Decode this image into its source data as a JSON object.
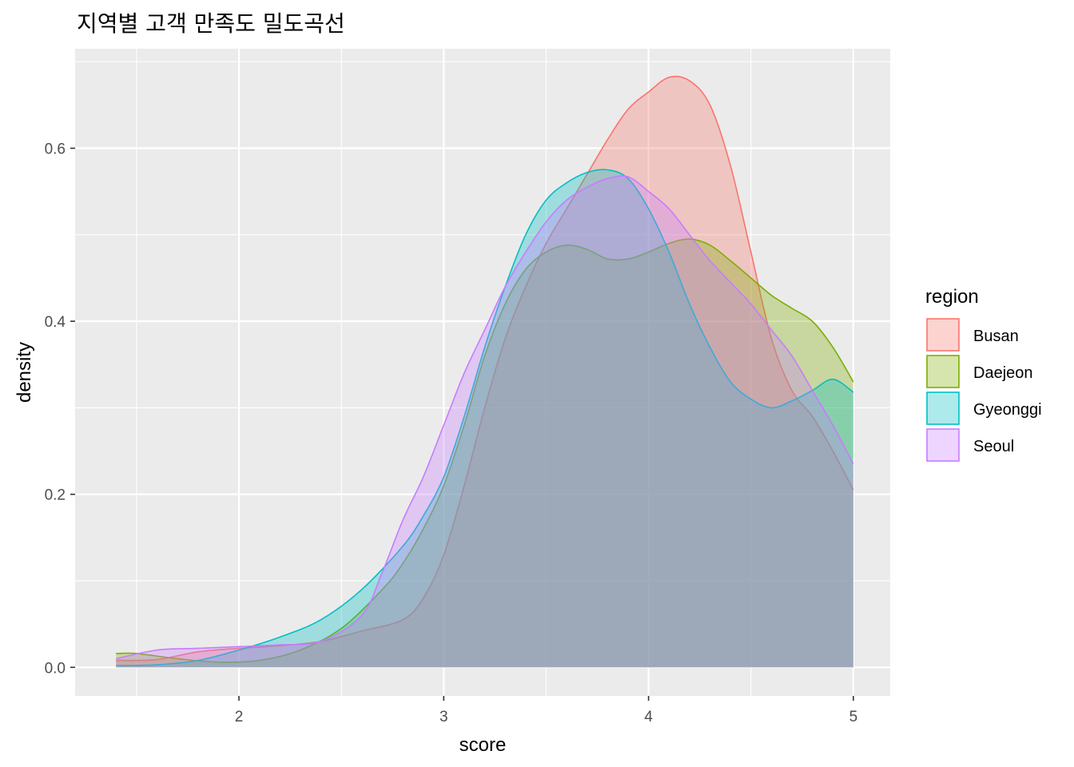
{
  "chart_data": {
    "type": "area",
    "title": "지역별 고객 만족도 밀도곡선",
    "xlabel": "score",
    "ylabel": "density",
    "xlim": [
      1.2,
      5.18
    ],
    "ylim": [
      -0.033,
      0.715
    ],
    "x_ticks": [
      2,
      3,
      4,
      5
    ],
    "x_tick_labels": [
      "2",
      "3",
      "4",
      "5"
    ],
    "y_ticks": [
      0.0,
      0.2,
      0.4,
      0.6
    ],
    "y_tick_labels": [
      "0.0",
      "0.2",
      "0.4",
      "0.6"
    ],
    "grid": true,
    "legend": {
      "title": "region",
      "position": "right"
    },
    "series": [
      {
        "name": "Busan",
        "color": "#F8766D",
        "points": [
          [
            1.4,
            0.008
          ],
          [
            1.6,
            0.009
          ],
          [
            1.8,
            0.018
          ],
          [
            2.0,
            0.022
          ],
          [
            2.2,
            0.025
          ],
          [
            2.4,
            0.03
          ],
          [
            2.6,
            0.042
          ],
          [
            2.8,
            0.055
          ],
          [
            2.9,
            0.08
          ],
          [
            3.0,
            0.13
          ],
          [
            3.1,
            0.21
          ],
          [
            3.2,
            0.3
          ],
          [
            3.3,
            0.38
          ],
          [
            3.4,
            0.44
          ],
          [
            3.5,
            0.49
          ],
          [
            3.6,
            0.53
          ],
          [
            3.7,
            0.57
          ],
          [
            3.8,
            0.61
          ],
          [
            3.9,
            0.645
          ],
          [
            4.0,
            0.665
          ],
          [
            4.1,
            0.682
          ],
          [
            4.2,
            0.678
          ],
          [
            4.3,
            0.65
          ],
          [
            4.4,
            0.58
          ],
          [
            4.5,
            0.48
          ],
          [
            4.6,
            0.38
          ],
          [
            4.7,
            0.32
          ],
          [
            4.8,
            0.29
          ],
          [
            4.9,
            0.25
          ],
          [
            5.0,
            0.205
          ]
        ]
      },
      {
        "name": "Daejeon",
        "color": "#7CAE00",
        "points": [
          [
            1.4,
            0.016
          ],
          [
            1.5,
            0.016
          ],
          [
            1.7,
            0.01
          ],
          [
            1.9,
            0.006
          ],
          [
            2.1,
            0.008
          ],
          [
            2.3,
            0.02
          ],
          [
            2.5,
            0.045
          ],
          [
            2.7,
            0.09
          ],
          [
            2.8,
            0.12
          ],
          [
            2.9,
            0.16
          ],
          [
            3.0,
            0.21
          ],
          [
            3.1,
            0.28
          ],
          [
            3.2,
            0.36
          ],
          [
            3.3,
            0.42
          ],
          [
            3.4,
            0.46
          ],
          [
            3.5,
            0.48
          ],
          [
            3.6,
            0.488
          ],
          [
            3.7,
            0.483
          ],
          [
            3.8,
            0.472
          ],
          [
            3.9,
            0.472
          ],
          [
            4.0,
            0.48
          ],
          [
            4.1,
            0.49
          ],
          [
            4.2,
            0.495
          ],
          [
            4.3,
            0.488
          ],
          [
            4.4,
            0.47
          ],
          [
            4.5,
            0.45
          ],
          [
            4.6,
            0.43
          ],
          [
            4.7,
            0.415
          ],
          [
            4.8,
            0.4
          ],
          [
            4.9,
            0.37
          ],
          [
            5.0,
            0.33
          ]
        ]
      },
      {
        "name": "Gyeonggi",
        "color": "#00BFC4",
        "points": [
          [
            1.4,
            0.002
          ],
          [
            1.6,
            0.003
          ],
          [
            1.8,
            0.008
          ],
          [
            2.0,
            0.02
          ],
          [
            2.2,
            0.035
          ],
          [
            2.4,
            0.055
          ],
          [
            2.6,
            0.09
          ],
          [
            2.8,
            0.14
          ],
          [
            2.9,
            0.175
          ],
          [
            3.0,
            0.22
          ],
          [
            3.1,
            0.29
          ],
          [
            3.2,
            0.37
          ],
          [
            3.3,
            0.44
          ],
          [
            3.4,
            0.5
          ],
          [
            3.5,
            0.54
          ],
          [
            3.6,
            0.56
          ],
          [
            3.7,
            0.572
          ],
          [
            3.8,
            0.575
          ],
          [
            3.9,
            0.565
          ],
          [
            4.0,
            0.53
          ],
          [
            4.1,
            0.48
          ],
          [
            4.2,
            0.42
          ],
          [
            4.3,
            0.37
          ],
          [
            4.4,
            0.33
          ],
          [
            4.5,
            0.31
          ],
          [
            4.6,
            0.3
          ],
          [
            4.7,
            0.308
          ],
          [
            4.8,
            0.32
          ],
          [
            4.9,
            0.333
          ],
          [
            5.0,
            0.318
          ]
        ]
      },
      {
        "name": "Seoul",
        "color": "#C77CFF",
        "points": [
          [
            1.4,
            0.01
          ],
          [
            1.6,
            0.02
          ],
          [
            1.8,
            0.022
          ],
          [
            2.0,
            0.024
          ],
          [
            2.2,
            0.026
          ],
          [
            2.4,
            0.03
          ],
          [
            2.6,
            0.06
          ],
          [
            2.7,
            0.11
          ],
          [
            2.8,
            0.17
          ],
          [
            2.9,
            0.22
          ],
          [
            3.0,
            0.28
          ],
          [
            3.1,
            0.34
          ],
          [
            3.2,
            0.39
          ],
          [
            3.3,
            0.44
          ],
          [
            3.4,
            0.48
          ],
          [
            3.5,
            0.515
          ],
          [
            3.6,
            0.54
          ],
          [
            3.7,
            0.555
          ],
          [
            3.8,
            0.565
          ],
          [
            3.9,
            0.567
          ],
          [
            4.0,
            0.55
          ],
          [
            4.1,
            0.53
          ],
          [
            4.2,
            0.5
          ],
          [
            4.3,
            0.47
          ],
          [
            4.4,
            0.445
          ],
          [
            4.5,
            0.42
          ],
          [
            4.6,
            0.39
          ],
          [
            4.7,
            0.36
          ],
          [
            4.8,
            0.32
          ],
          [
            4.9,
            0.28
          ],
          [
            5.0,
            0.235
          ]
        ]
      }
    ]
  }
}
